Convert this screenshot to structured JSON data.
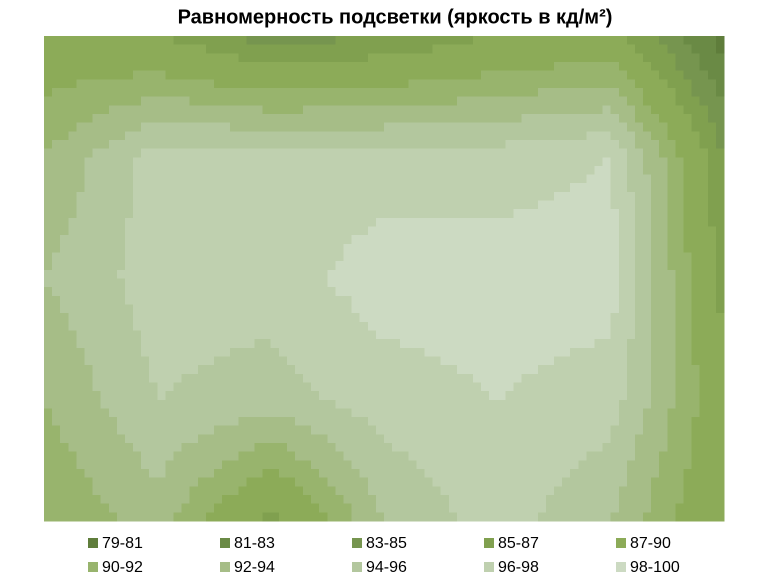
{
  "chart_data": {
    "type": "contour",
    "title": "Равномерность подсветки (яркость в кд/м²)",
    "z": [
      [
        88,
        87,
        84,
        85,
        87,
        88,
        80
      ],
      [
        92,
        97,
        97,
        97,
        97,
        98,
        85
      ],
      [
        94,
        97,
        97,
        99,
        99,
        99,
        86
      ],
      [
        92,
        96,
        95,
        97,
        98,
        97,
        88
      ],
      [
        90,
        93,
        86,
        94,
        97,
        94,
        87
      ]
    ],
    "levels": [
      79,
      81,
      83,
      85,
      87,
      90,
      92,
      94,
      96,
      98,
      100
    ],
    "series": [
      {
        "name": "79-81",
        "color": "#5f7d3b"
      },
      {
        "name": "81-83",
        "color": "#6a8a45"
      },
      {
        "name": "83-85",
        "color": "#76954f"
      },
      {
        "name": "85-87",
        "color": "#80a04f"
      },
      {
        "name": "87-90",
        "color": "#8cab58"
      },
      {
        "name": "90-92",
        "color": "#98b46d"
      },
      {
        "name": "92-94",
        "color": "#a6bd87"
      },
      {
        "name": "94-96",
        "color": "#b3c79e"
      },
      {
        "name": "96-98",
        "color": "#bfd0af"
      },
      {
        "name": "98-100",
        "color": "#ccdac2"
      }
    ]
  }
}
